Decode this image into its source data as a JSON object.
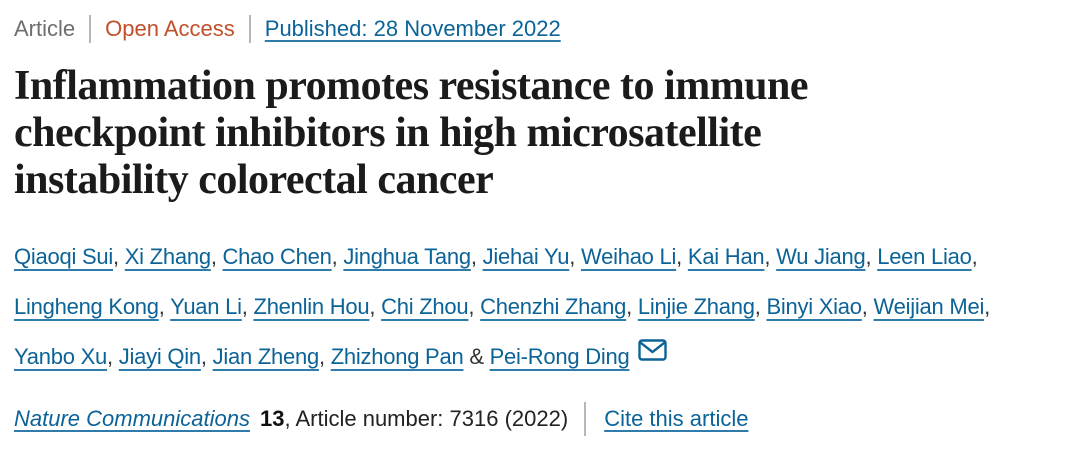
{
  "meta": {
    "article_type": "Article",
    "access_type": "Open Access",
    "published": "Published: 28 November 2022"
  },
  "title_lines": [
    "Inflammation promotes resistance to immune",
    "checkpoint inhibitors in high microsatellite",
    "instability colorectal cancer"
  ],
  "authors": {
    "names": [
      "Qiaoqi Sui",
      "Xi Zhang",
      "Chao Chen",
      "Jinghua Tang",
      "Jiehai Yu",
      "Weihao Li",
      "Kai Han",
      "Wu Jiang",
      "Leen Liao",
      "Lingheng Kong",
      "Yuan Li",
      "Zhenlin Hou",
      "Chi Zhou",
      "Chenzhi Zhang",
      "Linjie Zhang",
      "Binyi Xiao",
      "Weijian Mei",
      "Yanbo Xu",
      "Jiayi Qin",
      "Jian Zheng",
      "Zhizhong Pan",
      "Pei-Rong Ding"
    ],
    "separator": ", ",
    "last_separator": " & ",
    "line_breaks_after_index": [
      8,
      16
    ],
    "corresponding_author_icon": "envelope-icon"
  },
  "citation": {
    "journal": "Nature Communications",
    "volume": "13",
    "article_info": ", Article number: 7316 (2022)",
    "cite_link": "Cite this article"
  },
  "colors": {
    "link_blue": "#0c6397",
    "open_access_red": "#c1502a",
    "meta_gray": "#6e6e6e",
    "divider_gray": "#b7b7b7",
    "title_black": "#1b1b1b",
    "body_text": "#333333"
  }
}
